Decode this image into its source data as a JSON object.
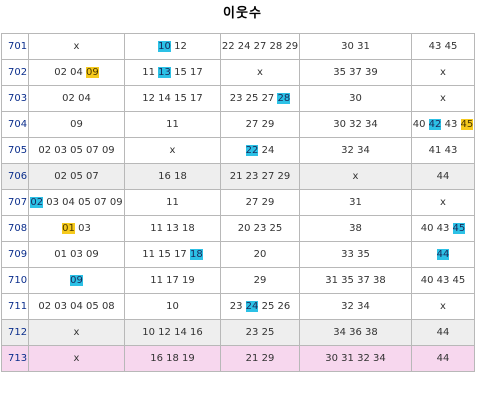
{
  "title": "이웃수",
  "colors": {
    "blue_highlight": "#2cc1e6",
    "yellow_highlight": "#f6ca1c",
    "gray_row": "#eeeeee",
    "pink_row": "#f7d7ee",
    "row_id_text": "#0b2e8c"
  },
  "rows": [
    {
      "id": "701",
      "style": "",
      "cells": [
        [
          {
            "t": "x"
          }
        ],
        [
          {
            "t": "10",
            "hl": "blue"
          },
          {
            "t": " 12"
          }
        ],
        [
          {
            "t": "22 24 27 28 29"
          }
        ],
        [
          {
            "t": "30 31"
          }
        ],
        [
          {
            "t": "43 45"
          }
        ]
      ]
    },
    {
      "id": "702",
      "style": "",
      "cells": [
        [
          {
            "t": "02 04 "
          },
          {
            "t": "09",
            "hl": "yellow"
          }
        ],
        [
          {
            "t": "11 "
          },
          {
            "t": "13",
            "hl": "blue"
          },
          {
            "t": " 15 17"
          }
        ],
        [
          {
            "t": "x"
          }
        ],
        [
          {
            "t": "35 37 39"
          }
        ],
        [
          {
            "t": "x"
          }
        ]
      ]
    },
    {
      "id": "703",
      "style": "",
      "cells": [
        [
          {
            "t": "02 04"
          }
        ],
        [
          {
            "t": "12 14 15 17"
          }
        ],
        [
          {
            "t": "23 25 27 "
          },
          {
            "t": "28",
            "hl": "blue"
          }
        ],
        [
          {
            "t": "30"
          }
        ],
        [
          {
            "t": "x"
          }
        ]
      ]
    },
    {
      "id": "704",
      "style": "",
      "cells": [
        [
          {
            "t": "09"
          }
        ],
        [
          {
            "t": "11"
          }
        ],
        [
          {
            "t": "27 29"
          }
        ],
        [
          {
            "t": "30 32 34"
          }
        ],
        [
          {
            "t": "40 "
          },
          {
            "t": "42",
            "hl": "blue"
          },
          {
            "t": " 43 "
          },
          {
            "t": "45",
            "hl": "yellow"
          }
        ]
      ]
    },
    {
      "id": "705",
      "style": "",
      "cells": [
        [
          {
            "t": "02 03 05 07 09"
          }
        ],
        [
          {
            "t": "x"
          }
        ],
        [
          {
            "t": "22",
            "hl": "blue"
          },
          {
            "t": " 24"
          }
        ],
        [
          {
            "t": "32 34"
          }
        ],
        [
          {
            "t": "41 43"
          }
        ]
      ]
    },
    {
      "id": "706",
      "style": "gray",
      "cells": [
        [
          {
            "t": "02 05 07"
          }
        ],
        [
          {
            "t": "16 18"
          }
        ],
        [
          {
            "t": "21 23 27 29"
          }
        ],
        [
          {
            "t": "x"
          }
        ],
        [
          {
            "t": "44"
          }
        ]
      ]
    },
    {
      "id": "707",
      "style": "",
      "cells": [
        [
          {
            "t": "02",
            "hl": "blue"
          },
          {
            "t": " 03 04 05 07 09"
          }
        ],
        [
          {
            "t": "11"
          }
        ],
        [
          {
            "t": "27 29"
          }
        ],
        [
          {
            "t": "31"
          }
        ],
        [
          {
            "t": "x"
          }
        ]
      ]
    },
    {
      "id": "708",
      "style": "",
      "cells": [
        [
          {
            "t": "01",
            "hl": "yellow"
          },
          {
            "t": " 03"
          }
        ],
        [
          {
            "t": "11 13 18"
          }
        ],
        [
          {
            "t": "20 23 25"
          }
        ],
        [
          {
            "t": "38"
          }
        ],
        [
          {
            "t": "40 43 "
          },
          {
            "t": "45",
            "hl": "blue"
          }
        ]
      ]
    },
    {
      "id": "709",
      "style": "",
      "cells": [
        [
          {
            "t": "01 03 09"
          }
        ],
        [
          {
            "t": "11 15 17 "
          },
          {
            "t": "18",
            "hl": "blue"
          }
        ],
        [
          {
            "t": "20"
          }
        ],
        [
          {
            "t": "33 35"
          }
        ],
        [
          {
            "t": "44",
            "hl": "blue"
          }
        ]
      ]
    },
    {
      "id": "710",
      "style": "",
      "cells": [
        [
          {
            "t": "09",
            "hl": "blue"
          }
        ],
        [
          {
            "t": "11 17 19"
          }
        ],
        [
          {
            "t": "29"
          }
        ],
        [
          {
            "t": "31 35 37 38"
          }
        ],
        [
          {
            "t": "40 43 45"
          }
        ]
      ]
    },
    {
      "id": "711",
      "style": "",
      "cells": [
        [
          {
            "t": "02 03 04 05 08"
          }
        ],
        [
          {
            "t": "10"
          }
        ],
        [
          {
            "t": "23 "
          },
          {
            "t": "24",
            "hl": "blue"
          },
          {
            "t": " 25 26"
          }
        ],
        [
          {
            "t": "32 34"
          }
        ],
        [
          {
            "t": "x"
          }
        ]
      ]
    },
    {
      "id": "712",
      "style": "gray",
      "cells": [
        [
          {
            "t": "x"
          }
        ],
        [
          {
            "t": "10 12 14 16"
          }
        ],
        [
          {
            "t": "23 25"
          }
        ],
        [
          {
            "t": "34 36 38"
          }
        ],
        [
          {
            "t": "44"
          }
        ]
      ]
    },
    {
      "id": "713",
      "style": "pink",
      "cells": [
        [
          {
            "t": "x"
          }
        ],
        [
          {
            "t": "16 18 19"
          }
        ],
        [
          {
            "t": "21 29"
          }
        ],
        [
          {
            "t": "30 31 32 34"
          }
        ],
        [
          {
            "t": "44"
          }
        ]
      ]
    }
  ]
}
